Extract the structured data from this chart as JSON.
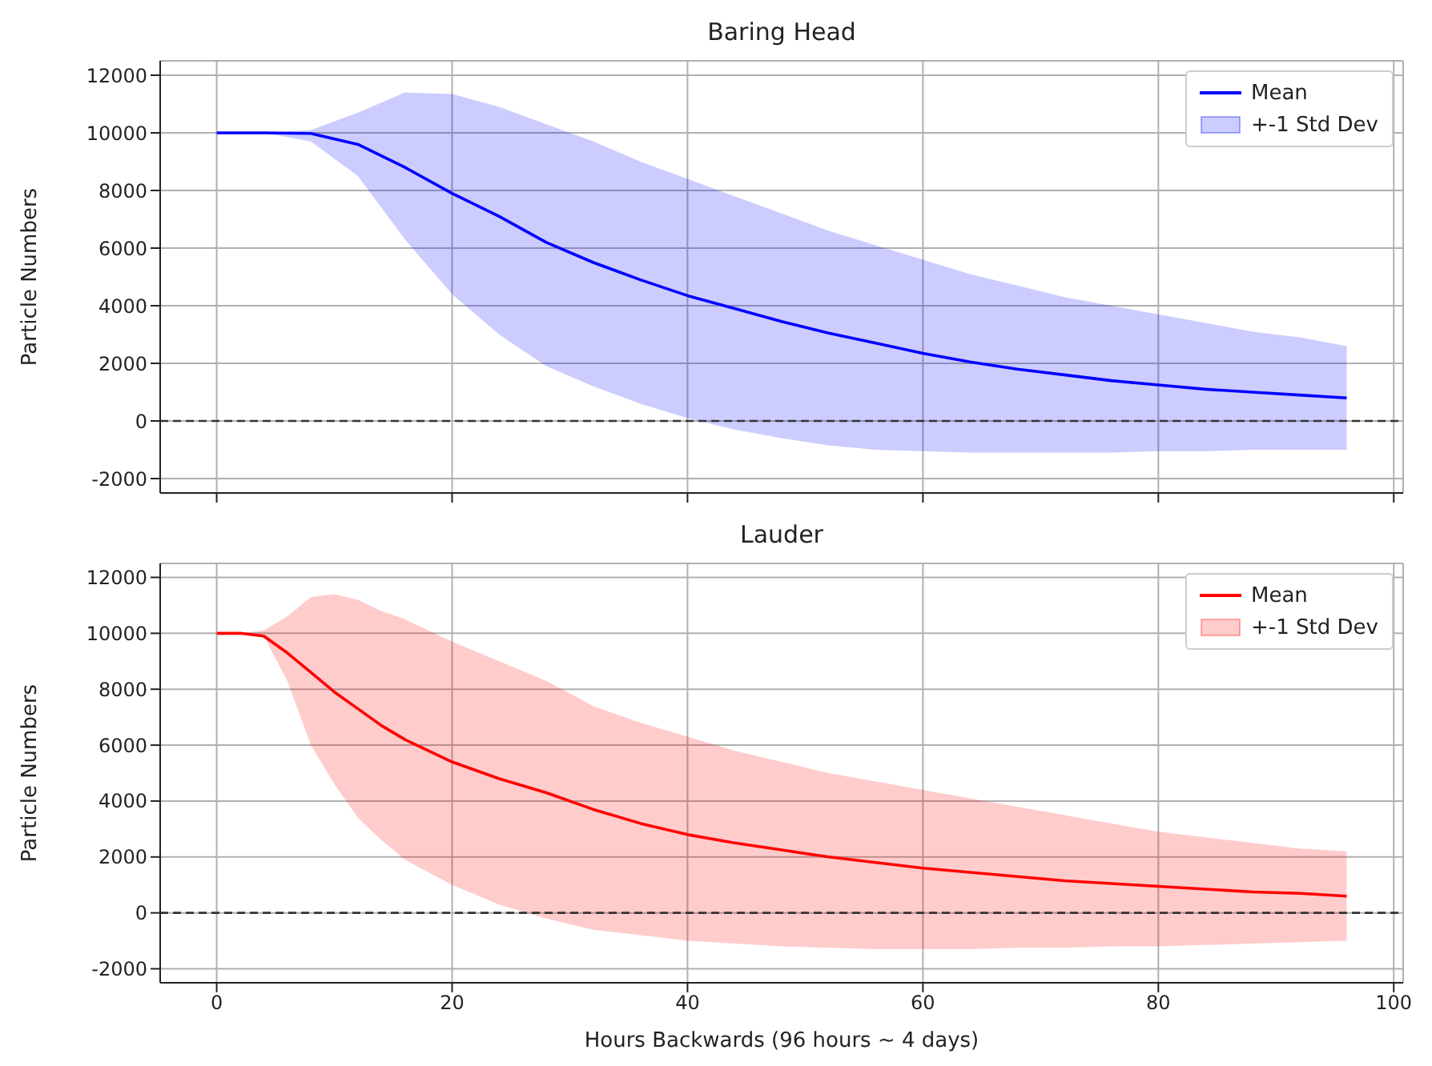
{
  "chart_data": [
    {
      "type": "line",
      "title": "Baring Head",
      "ylabel": "Particle Numbers",
      "xlim": [
        -4.8,
        100.8
      ],
      "xticks": [
        0,
        20,
        40,
        60,
        80,
        100
      ],
      "ylim": [
        -2500,
        12500
      ],
      "yticks": [
        -2000,
        0,
        2000,
        4000,
        6000,
        8000,
        10000,
        12000
      ],
      "tick_labels": "y",
      "grid": true,
      "legend": "top right",
      "marker": "none",
      "annotations": [
        "+-1 Std Dev"
      ],
      "x": [
        0,
        4,
        8,
        12,
        16,
        20,
        24,
        28,
        32,
        36,
        40,
        44,
        48,
        52,
        56,
        60,
        64,
        68,
        72,
        76,
        80,
        84,
        88,
        92,
        96
      ],
      "series": [
        {
          "name": "Mean",
          "color": "#0000ff",
          "values": [
            10000,
            10000,
            9980,
            9600,
            8800,
            7900,
            7100,
            6200,
            5500,
            4900,
            4350,
            3900,
            3450,
            3050,
            2700,
            2350,
            2050,
            1800,
            1600,
            1400,
            1250,
            1100,
            1000,
            900,
            800
          ],
          "lower": [
            10000,
            10000,
            9700,
            8500,
            6300,
            4400,
            3000,
            1900,
            1200,
            600,
            100,
            -300,
            -600,
            -850,
            -1000,
            -1050,
            -1100,
            -1100,
            -1100,
            -1100,
            -1050,
            -1050,
            -1000,
            -1000,
            -1000
          ],
          "upper": [
            10000,
            10000,
            10100,
            10700,
            11400,
            11350,
            10900,
            10300,
            9700,
            9000,
            8400,
            7800,
            7200,
            6600,
            6100,
            5600,
            5100,
            4700,
            4300,
            4000,
            3700,
            3400,
            3100,
            2900,
            2600
          ]
        }
      ],
      "ref_lines": [
        {
          "axis": "y",
          "value": 0,
          "color": "#333333",
          "line_style": "dashed"
        }
      ]
    },
    {
      "type": "line",
      "title": "Lauder",
      "xlabel": "Hours Backwards (96 hours ~ 4 days)",
      "ylabel": "Particle Numbers",
      "xlim": [
        -4.8,
        100.8
      ],
      "xticks": [
        0,
        20,
        40,
        60,
        80,
        100
      ],
      "ylim": [
        -2500,
        12500
      ],
      "yticks": [
        -2000,
        0,
        2000,
        4000,
        6000,
        8000,
        10000,
        12000
      ],
      "grid": true,
      "legend": "top right",
      "marker": "none",
      "annotations": [
        "+-1 Std Dev"
      ],
      "x": [
        0,
        2,
        4,
        6,
        8,
        10,
        12,
        14,
        16,
        20,
        24,
        28,
        32,
        36,
        40,
        44,
        48,
        52,
        56,
        60,
        64,
        68,
        72,
        76,
        80,
        84,
        88,
        92,
        96
      ],
      "series": [
        {
          "name": "Mean",
          "color": "#ff0000",
          "values": [
            10000,
            10000,
            9900,
            9300,
            8600,
            7900,
            7300,
            6700,
            6200,
            5400,
            4800,
            4300,
            3700,
            3200,
            2800,
            2500,
            2250,
            2000,
            1800,
            1600,
            1450,
            1300,
            1150,
            1050,
            950,
            850,
            750,
            700,
            600
          ],
          "lower": [
            10000,
            10000,
            9900,
            8300,
            6000,
            4600,
            3400,
            2600,
            1900,
            1000,
            300,
            -200,
            -600,
            -800,
            -1000,
            -1100,
            -1200,
            -1250,
            -1300,
            -1300,
            -1300,
            -1250,
            -1250,
            -1200,
            -1200,
            -1150,
            -1100,
            -1050,
            -1000
          ],
          "upper": [
            10000,
            10000,
            10100,
            10600,
            11300,
            11400,
            11200,
            10800,
            10500,
            9700,
            9000,
            8300,
            7400,
            6800,
            6300,
            5800,
            5400,
            5000,
            4700,
            4400,
            4100,
            3800,
            3500,
            3200,
            2900,
            2700,
            2500,
            2300,
            2200
          ]
        }
      ],
      "ref_lines": [
        {
          "axis": "y",
          "value": 0,
          "color": "#333333",
          "line_style": "dashed"
        }
      ]
    }
  ]
}
